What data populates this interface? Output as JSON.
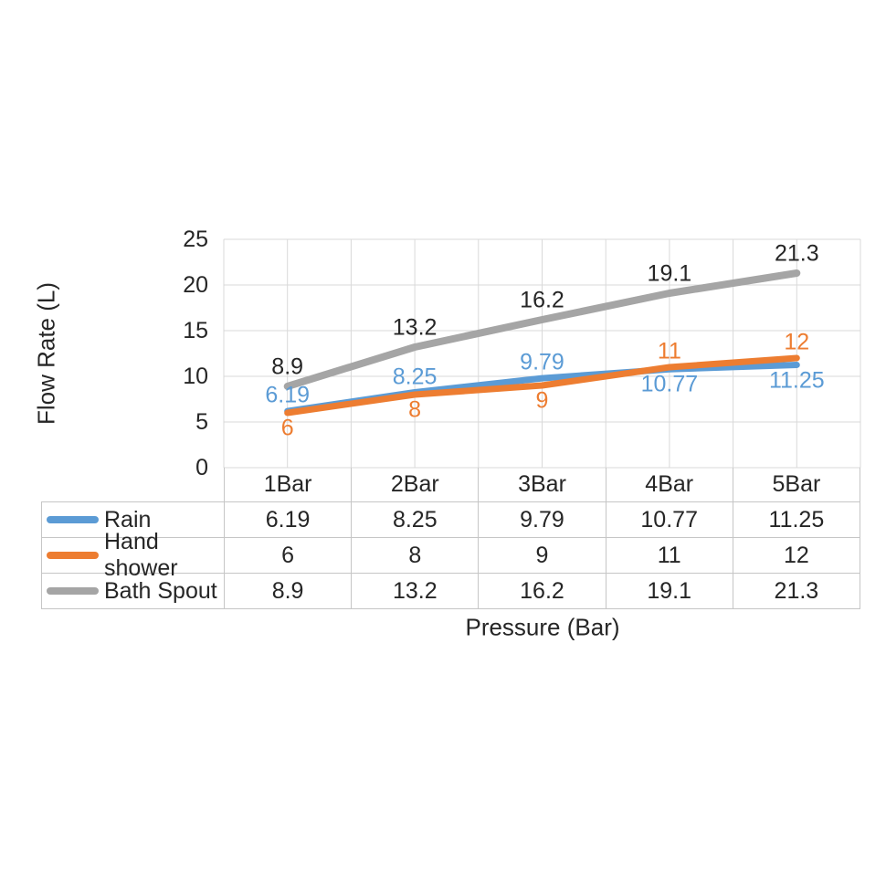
{
  "chart_data": {
    "type": "line",
    "title": "",
    "xlabel": "Pressure (Bar)",
    "ylabel": "Flow Rate (L)",
    "categories": [
      "1Bar",
      "2Bar",
      "3Bar",
      "4Bar",
      "5Bar"
    ],
    "series": [
      {
        "name": "Rain",
        "color": "#5B9BD5",
        "label_color": "#5B9BD5",
        "values": [
          6.19,
          8.25,
          9.79,
          10.77,
          11.25
        ]
      },
      {
        "name": "Hand shower",
        "color": "#ED7D31",
        "label_color": "#ED7D31",
        "values": [
          6,
          8,
          9,
          11,
          12
        ]
      },
      {
        "name": "Bath Spout",
        "color": "#A5A5A5",
        "label_color": "#262626",
        "values": [
          8.9,
          13.2,
          16.2,
          19.1,
          21.3
        ]
      }
    ],
    "y_ticks": [
      0,
      5,
      10,
      15,
      20,
      25
    ],
    "ylim": [
      0,
      25
    ],
    "grid": true,
    "data_labels": true,
    "legend_position": "data-table-left"
  },
  "colors": {
    "gridline": "#D9D9D9",
    "table_border": "#C6C6C6",
    "text": "#262626"
  }
}
